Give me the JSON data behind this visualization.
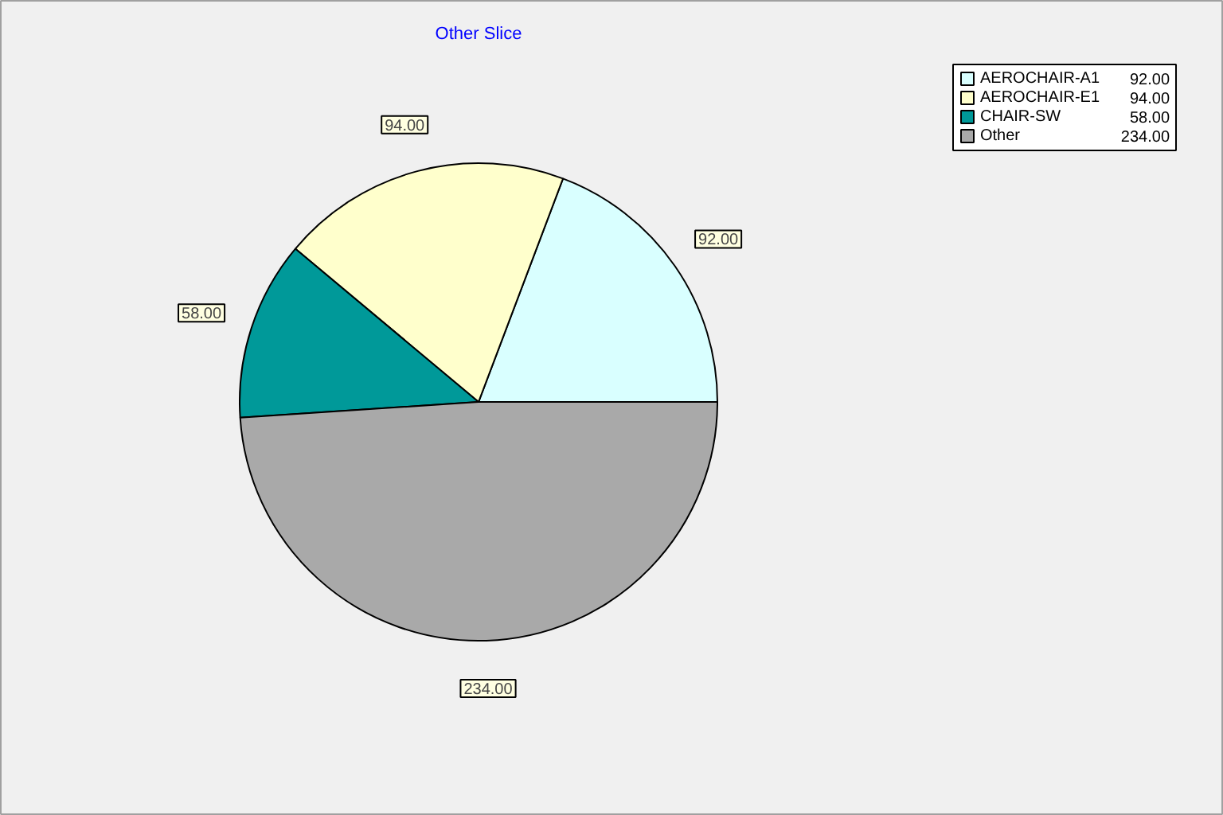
{
  "chart_data": {
    "type": "pie",
    "title": "Other Slice",
    "categories": [
      "AEROCHAIR-A1",
      "AEROCHAIR-E1",
      "CHAIR-SW",
      "Other"
    ],
    "values": [
      92,
      94,
      58,
      234
    ],
    "colors": [
      "#d9ffff",
      "#ffffcc",
      "#009999",
      "#a9a9a9"
    ],
    "value_labels": [
      "92.00",
      "94.00",
      "58.00",
      "234.00"
    ],
    "legend": "top right"
  }
}
